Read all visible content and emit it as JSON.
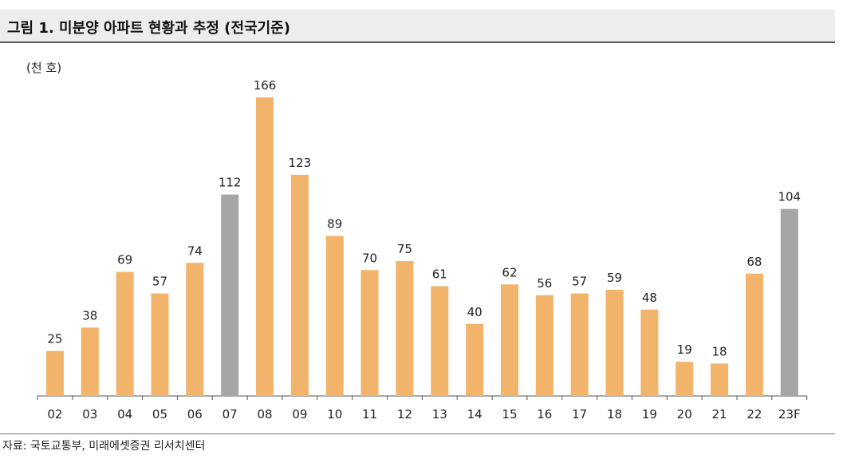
{
  "title": "그림 1. 미분양 아파트 현황과 추정 (전국기준)",
  "source": "자료: 국토교통부, 미래에셋증권 리서치센터",
  "colors": {
    "actual": "#f2b36b",
    "highlight": "#a6a6a6",
    "axis": "#555555",
    "title_bg": "#ededed"
  },
  "chart_data": {
    "type": "bar",
    "title": "그림 1. 미분양 아파트 현황과 추정 (전국기준)",
    "ylabel": "(천 호)",
    "xlabel": "",
    "categories": [
      "02",
      "03",
      "04",
      "05",
      "06",
      "07",
      "08",
      "09",
      "10",
      "11",
      "12",
      "13",
      "14",
      "15",
      "16",
      "17",
      "18",
      "19",
      "20",
      "21",
      "22",
      "23F"
    ],
    "values": [
      25,
      38,
      69,
      57,
      74,
      112,
      166,
      123,
      89,
      70,
      75,
      61,
      40,
      62,
      56,
      57,
      59,
      48,
      19,
      18,
      68,
      104
    ],
    "highlight_categories": [
      "07",
      "23F"
    ],
    "ylim": [
      0,
      166
    ],
    "grid": false,
    "legend": "none",
    "data_labels": true
  }
}
